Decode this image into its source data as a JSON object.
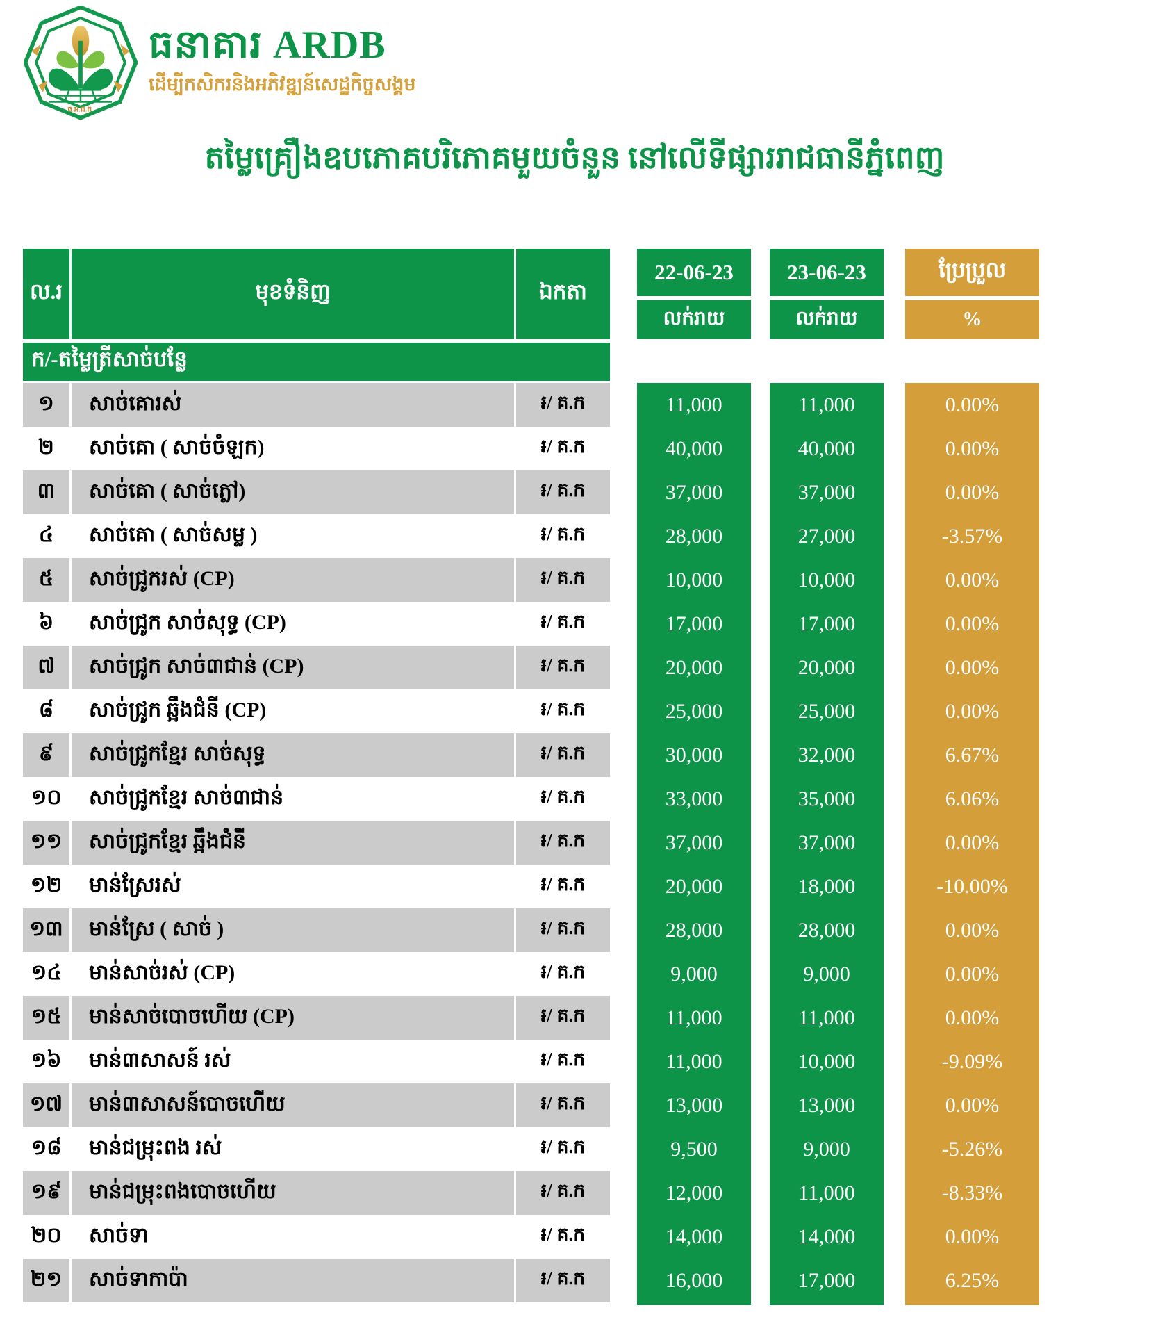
{
  "brand": {
    "name": "ធនាគារ ARDB",
    "slogan": "ដើម្បីកសិករនិងអភិវឌ្ឍន៍សេដ្ឋកិច្ចសង្គម",
    "logo_abbr": "ធ.អ.ជ.ក."
  },
  "title": "តម្លៃគ្រឿងឧបភោគបរិភោគមួយចំនួន នៅលើទីផ្សាររាជធានីភ្នំពេញ",
  "colors": {
    "green": "#0e9449",
    "orange": "#d49e3a",
    "gold": "#d5a13e",
    "row_grey": "#cbcbcb"
  },
  "table": {
    "headers": {
      "no": "ល.រ",
      "item": "មុខទំនិញ",
      "unit": "ឯកតា",
      "date1": "22-06-23",
      "date2": "23-06-23",
      "retail1": "លក់រាយ",
      "retail2": "លក់រាយ",
      "change": "ប្រែប្រួល",
      "percent": "%"
    },
    "section": "ក/-តម្លៃត្រីសាច់បន្លែ",
    "rows": [
      {
        "no": "១",
        "item": "សាច់គោរស់",
        "unit": "៛/ គ.ក",
        "price1": "11,000",
        "price2": "11,000",
        "change": "0.00%"
      },
      {
        "no": "២",
        "item": "សាច់គោ ( សាច់ចំឡក)",
        "unit": "៛/ គ.ក",
        "price1": "40,000",
        "price2": "40,000",
        "change": "0.00%"
      },
      {
        "no": "៣",
        "item": "សាច់គោ ( សាច់ភ្លៅ)",
        "unit": "៛/ គ.ក",
        "price1": "37,000",
        "price2": "37,000",
        "change": "0.00%"
      },
      {
        "no": "៤",
        "item": "សាច់គោ ( សាច់សម្ល )",
        "unit": "៛/ គ.ក",
        "price1": "28,000",
        "price2": "27,000",
        "change": "-3.57%"
      },
      {
        "no": "៥",
        "item": "សាច់ជ្រូករស់ (CP)",
        "unit": "៛/ គ.ក",
        "price1": "10,000",
        "price2": "10,000",
        "change": "0.00%"
      },
      {
        "no": "៦",
        "item": "សាច់ជ្រូក សាច់សុទ្ធ (CP)",
        "unit": "៛/ គ.ក",
        "price1": "17,000",
        "price2": "17,000",
        "change": "0.00%"
      },
      {
        "no": "៧",
        "item": "សាច់ជ្រូក សាច់៣ជាន់ (CP)",
        "unit": "៛/ គ.ក",
        "price1": "20,000",
        "price2": "20,000",
        "change": "0.00%"
      },
      {
        "no": "៨",
        "item": "សាច់ជ្រូក ឆ្អឹងជំនី (CP)",
        "unit": "៛/ គ.ក",
        "price1": "25,000",
        "price2": "25,000",
        "change": "0.00%"
      },
      {
        "no": "៩",
        "item": "សាច់ជ្រូកខ្មែរ សាច់សុទ្ធ",
        "unit": "៛/ គ.ក",
        "price1": "30,000",
        "price2": "32,000",
        "change": "6.67%"
      },
      {
        "no": "១០",
        "item": "សាច់ជ្រូកខ្មែរ សាច់៣ជាន់",
        "unit": "៛/ គ.ក",
        "price1": "33,000",
        "price2": "35,000",
        "change": "6.06%"
      },
      {
        "no": "១១",
        "item": "សាច់ជ្រូកខ្មែរ ឆ្អឹងជំនី",
        "unit": "៛/ គ.ក",
        "price1": "37,000",
        "price2": "37,000",
        "change": "0.00%"
      },
      {
        "no": "១២",
        "item": "មាន់ស្រែរស់",
        "unit": "៛/ គ.ក",
        "price1": "20,000",
        "price2": "18,000",
        "change": "-10.00%"
      },
      {
        "no": "១៣",
        "item": "មាន់ស្រែ ( សាច់ )",
        "unit": "៛/ គ.ក",
        "price1": "28,000",
        "price2": "28,000",
        "change": "0.00%"
      },
      {
        "no": "១៤",
        "item": "មាន់សាច់រស់ (CP)",
        "unit": "៛/ គ.ក",
        "price1": "9,000",
        "price2": "9,000",
        "change": "0.00%"
      },
      {
        "no": "១៥",
        "item": "មាន់សាច់បោចហើយ (CP)",
        "unit": "៛/ គ.ក",
        "price1": "11,000",
        "price2": "11,000",
        "change": "0.00%"
      },
      {
        "no": "១៦",
        "item": "មាន់៣សាសន៍ រស់",
        "unit": "៛/ គ.ក",
        "price1": "11,000",
        "price2": "10,000",
        "change": "-9.09%"
      },
      {
        "no": "១៧",
        "item": "មាន់៣សាសន៍បោចហើយ",
        "unit": "៛/ គ.ក",
        "price1": "13,000",
        "price2": "13,000",
        "change": "0.00%"
      },
      {
        "no": "១៨",
        "item": "មាន់ជម្រុះពង រស់",
        "unit": "៛/ គ.ក",
        "price1": "9,500",
        "price2": "9,000",
        "change": "-5.26%"
      },
      {
        "no": "១៩",
        "item": "មាន់ជម្រុះពងបោចហើយ",
        "unit": "៛/ គ.ក",
        "price1": "12,000",
        "price2": "11,000",
        "change": "-8.33%"
      },
      {
        "no": "២០",
        "item": "សាច់ទា",
        "unit": "៛/ គ.ក",
        "price1": "14,000",
        "price2": "14,000",
        "change": "0.00%"
      },
      {
        "no": "២១",
        "item": "សាច់ទាកាប៉ា",
        "unit": "៛/ គ.ក",
        "price1": "16,000",
        "price2": "17,000",
        "change": "6.25%"
      }
    ]
  }
}
